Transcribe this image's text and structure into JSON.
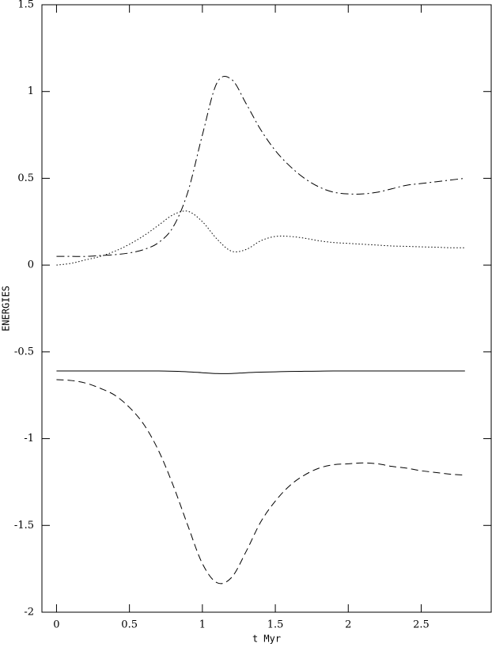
{
  "chart_data": {
    "type": "line",
    "x_label": "t Myr",
    "y_label": "ENERGIES",
    "x": [
      0,
      0.1,
      0.2,
      0.3,
      0.4,
      0.5,
      0.6,
      0.7,
      0.8,
      0.9,
      1,
      1.1,
      1.2,
      1.3,
      1.4,
      1.5,
      1.6,
      1.7,
      1.8,
      1.9,
      2,
      2.1,
      2.2,
      2.3,
      2.4,
      2.5,
      2.6,
      2.7,
      2.8
    ],
    "series": [
      {
        "color": "#000000",
        "dash": "dashdot",
        "values": [
          0.05,
          0.05,
          0.05,
          0.055,
          0.06,
          0.07,
          0.09,
          0.13,
          0.22,
          0.42,
          0.75,
          1.05,
          1.07,
          0.93,
          0.78,
          0.66,
          0.57,
          0.5,
          0.45,
          0.42,
          0.41,
          0.41,
          0.42,
          0.44,
          0.46,
          0.47,
          0.48,
          0.49,
          0.5
        ]
      },
      {
        "color": "#000000",
        "dash": "dotted",
        "values": [
          0.0,
          0.01,
          0.03,
          0.05,
          0.08,
          0.12,
          0.17,
          0.23,
          0.29,
          0.31,
          0.25,
          0.15,
          0.08,
          0.09,
          0.14,
          0.165,
          0.165,
          0.155,
          0.14,
          0.13,
          0.125,
          0.12,
          0.115,
          0.11,
          0.108,
          0.105,
          0.103,
          0.1,
          0.1
        ]
      },
      {
        "color": "#000000",
        "dash": "solid",
        "values": [
          -0.61,
          -0.61,
          -0.61,
          -0.61,
          -0.61,
          -0.61,
          -0.61,
          -0.61,
          -0.612,
          -0.615,
          -0.62,
          -0.625,
          -0.625,
          -0.62,
          -0.617,
          -0.615,
          -0.613,
          -0.612,
          -0.611,
          -0.61,
          -0.61,
          -0.61,
          -0.61,
          -0.61,
          -0.61,
          -0.61,
          -0.61,
          -0.61,
          -0.61
        ]
      },
      {
        "color": "#000000",
        "dash": "dashed",
        "values": [
          -0.66,
          -0.665,
          -0.68,
          -0.71,
          -0.75,
          -0.82,
          -0.92,
          -1.07,
          -1.27,
          -1.5,
          -1.72,
          -1.83,
          -1.8,
          -1.65,
          -1.48,
          -1.36,
          -1.27,
          -1.21,
          -1.17,
          -1.15,
          -1.145,
          -1.14,
          -1.145,
          -1.16,
          -1.17,
          -1.185,
          -1.195,
          -1.205,
          -1.21
        ]
      }
    ],
    "xlim": [
      -0.1,
      2.98
    ],
    "ylim": [
      -2,
      1.5
    ],
    "xticks": [
      0,
      0.5,
      1,
      1.5,
      2,
      2.5
    ],
    "yticks": [
      -2,
      -1.5,
      -1,
      -0.5,
      0,
      0.5,
      1,
      1.5
    ],
    "grid": false
  }
}
